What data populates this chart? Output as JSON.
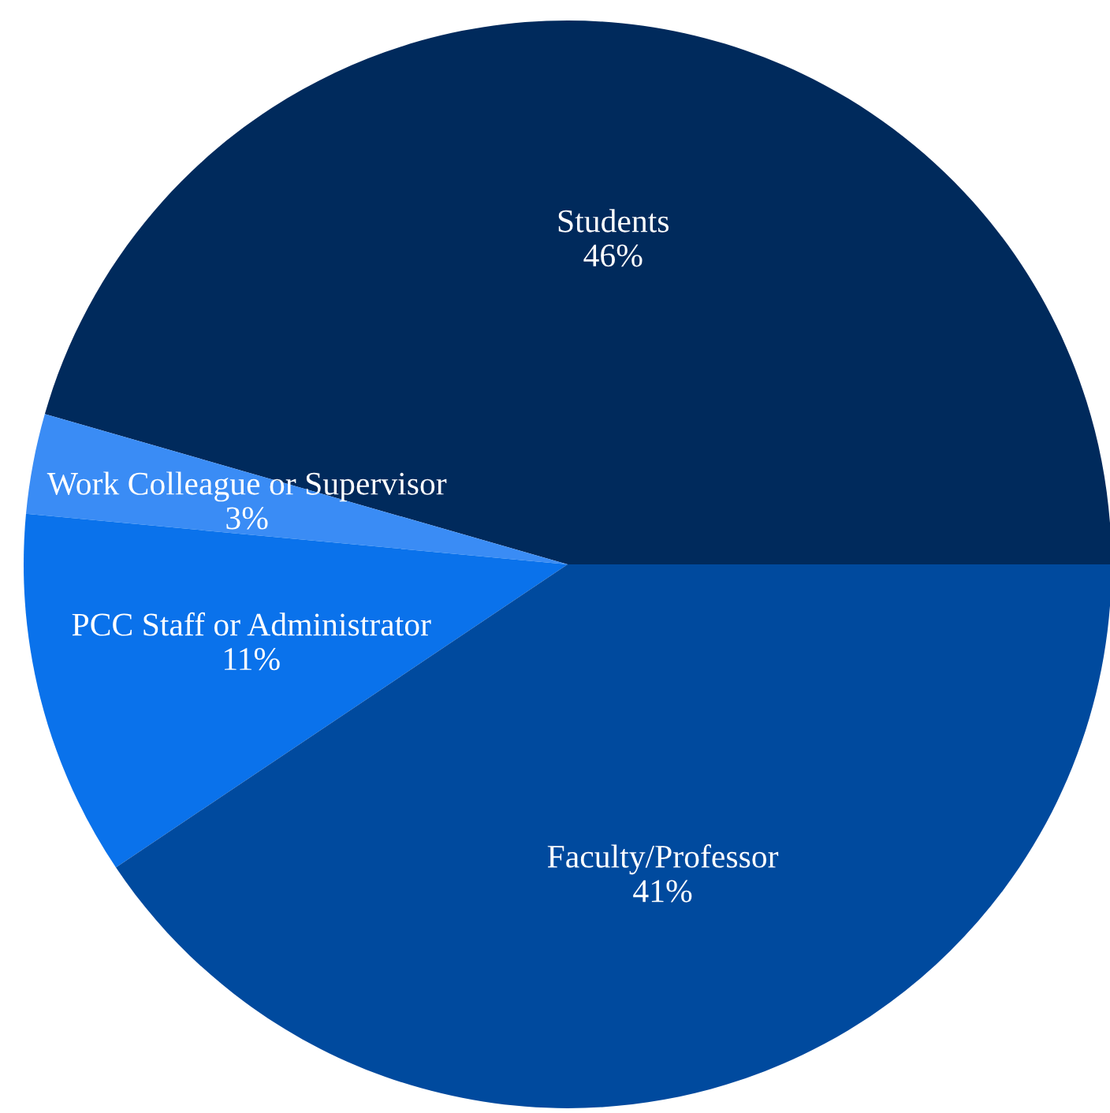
{
  "chart_data": {
    "type": "pie",
    "categories": [
      "Students",
      "Work Colleague or Supervisor",
      "PCC Staff or Administrator",
      "Faculty/Professor"
    ],
    "values": [
      46,
      3,
      11,
      41
    ],
    "value_labels": [
      "46%",
      "3%",
      "11%",
      "41%"
    ],
    "colors": [
      "#002a5c",
      "#3a8cf5",
      "#0a72eb",
      "#004a9e"
    ],
    "legend": false
  }
}
